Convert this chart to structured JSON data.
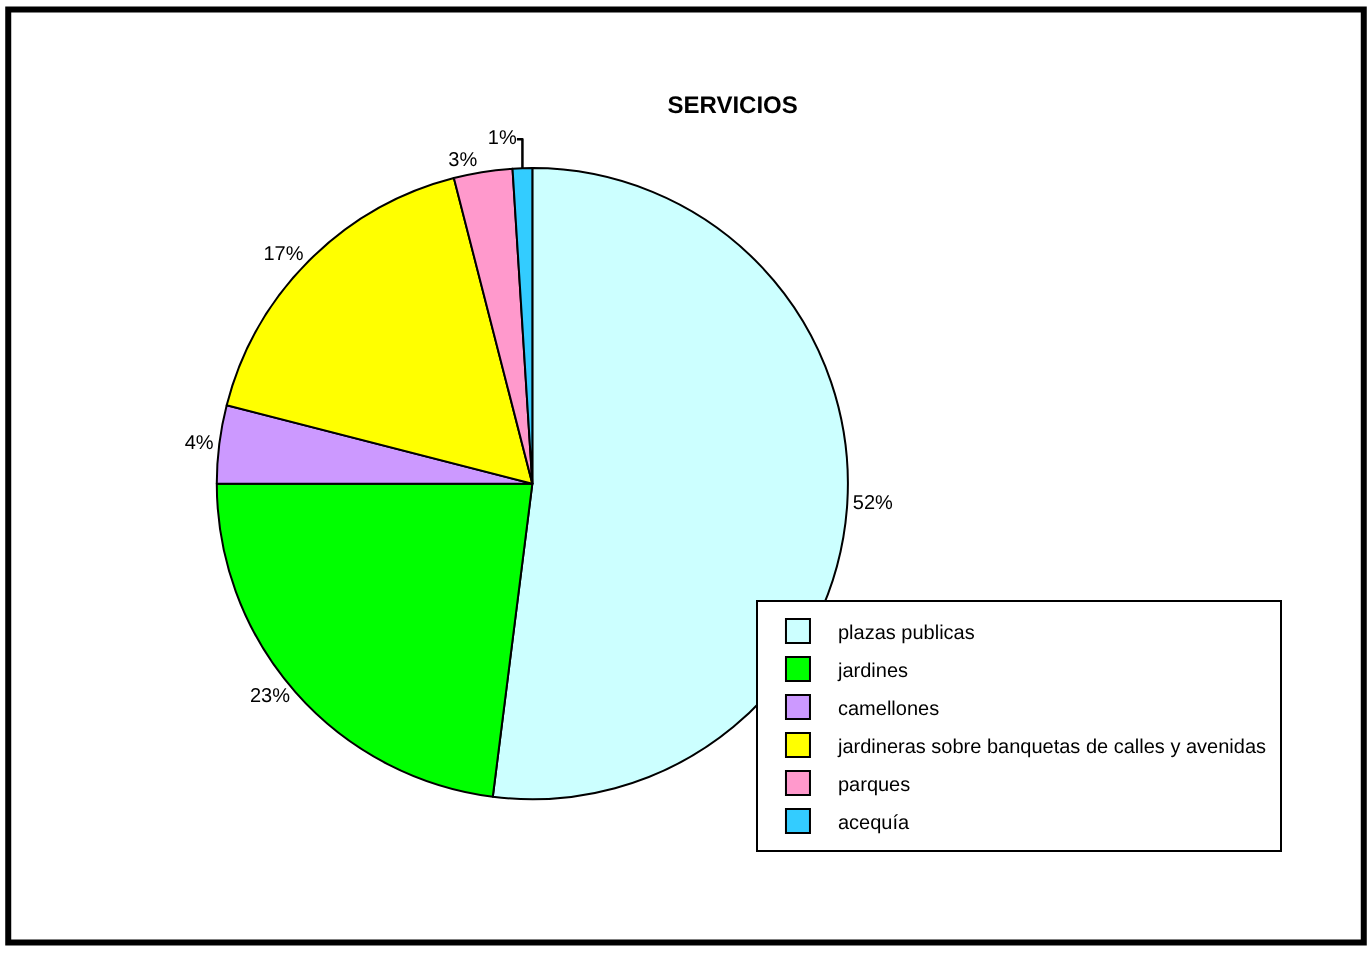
{
  "chart_data": {
    "type": "pie",
    "title": "SERVICIOS",
    "categories": [
      "plazas publicas",
      "jardines",
      "camellones",
      "jardineras sobre banquetas de calles y avenidas",
      "parques",
      "acequía"
    ],
    "values": [
      52,
      23,
      4,
      17,
      3,
      1
    ],
    "colors": [
      "#ccffff",
      "#00ff00",
      "#cc99ff",
      "#ffff00",
      "#ff99cc",
      "#33ccff"
    ],
    "value_labels": [
      "52%",
      "23%",
      "4%",
      "17%",
      "3%",
      "1%"
    ],
    "legend": "bottom right"
  }
}
